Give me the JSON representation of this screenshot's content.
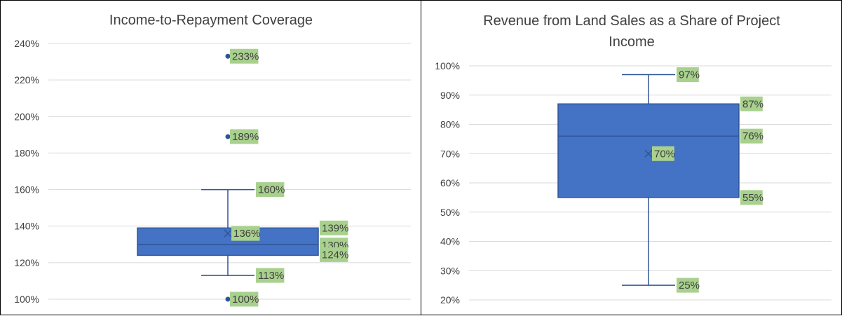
{
  "colors": {
    "box_fill": "#4472c4",
    "box_line": "#2f5597",
    "label_background": "#a9d18e",
    "gridline": "#d9d9d9",
    "text": "#404040"
  },
  "chart_data": [
    {
      "type": "box",
      "title": "Income-to-Repayment Coverage",
      "ylim": [
        1.0,
        2.4
      ],
      "y_ticks": [
        "100%",
        "120%",
        "140%",
        "160%",
        "180%",
        "200%",
        "220%",
        "240%"
      ],
      "grid": true,
      "legend": "none",
      "box": {
        "min": 1.13,
        "q1": 1.24,
        "median": 1.3,
        "q3": 1.39,
        "max": 1.6,
        "mean": 1.36
      },
      "outliers": [
        1.0,
        1.89,
        2.33
      ],
      "labels": {
        "min": "113%",
        "q1": "124%",
        "median": "130%",
        "q3": "139%",
        "max": "160%",
        "mean": "136%",
        "outliers": [
          "100%",
          "189%",
          "233%"
        ]
      }
    },
    {
      "type": "box",
      "title": "Revenue from Land Sales as a Share of Project Income",
      "title_lines": [
        "Revenue from Land Sales as a Share of Project",
        "Income"
      ],
      "ylim": [
        0.2,
        1.0
      ],
      "y_ticks": [
        "20%",
        "30%",
        "40%",
        "50%",
        "60%",
        "70%",
        "80%",
        "90%",
        "100%"
      ],
      "grid": true,
      "legend": "none",
      "box": {
        "min": 0.25,
        "q1": 0.55,
        "median": 0.76,
        "q3": 0.87,
        "max": 0.97,
        "mean": 0.7
      },
      "outliers": [],
      "labels": {
        "min": "25%",
        "q1": "55%",
        "median": "76%",
        "q3": "87%",
        "max": "97%",
        "mean": "70%",
        "outliers": []
      }
    }
  ]
}
